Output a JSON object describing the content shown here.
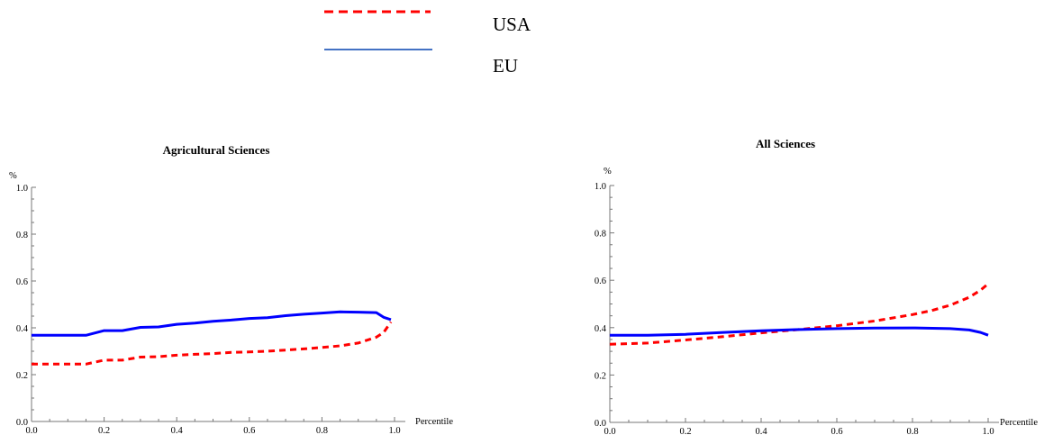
{
  "legend": {
    "entries": [
      {
        "name": "USA",
        "color": "#ff0000",
        "style": "dashed"
      },
      {
        "name": "EU",
        "color": "#4472c4",
        "style": "solid"
      }
    ]
  },
  "colors": {
    "usa": "#ff0000",
    "eu": "#0000ff"
  },
  "chart_data": [
    {
      "type": "line",
      "title": "Agricultural Sciences",
      "xlabel": "Percentile",
      "ylabel": "%",
      "xlim": [
        0,
        1
      ],
      "ylim": [
        0,
        1
      ],
      "xticks": [
        "0.0",
        "0.2",
        "0.4",
        "0.6",
        "0.8",
        "1.0"
      ],
      "yticks": [
        "0.0",
        "0.2",
        "0.4",
        "0.6",
        "0.8",
        "1.0"
      ],
      "grid": false,
      "series": [
        {
          "name": "USA",
          "x": [
            0.0,
            0.05,
            0.1,
            0.15,
            0.2,
            0.25,
            0.3,
            0.35,
            0.4,
            0.45,
            0.5,
            0.55,
            0.6,
            0.65,
            0.7,
            0.75,
            0.8,
            0.85,
            0.9,
            0.95,
            0.97,
            0.99
          ],
          "y": [
            0.245,
            0.245,
            0.245,
            0.245,
            0.262,
            0.262,
            0.275,
            0.277,
            0.283,
            0.287,
            0.29,
            0.295,
            0.297,
            0.3,
            0.305,
            0.31,
            0.316,
            0.323,
            0.335,
            0.36,
            0.38,
            0.425
          ]
        },
        {
          "name": "EU",
          "x": [
            0.0,
            0.05,
            0.1,
            0.15,
            0.2,
            0.25,
            0.3,
            0.35,
            0.4,
            0.45,
            0.5,
            0.55,
            0.6,
            0.65,
            0.7,
            0.75,
            0.8,
            0.85,
            0.9,
            0.95,
            0.97,
            0.99
          ],
          "y": [
            0.368,
            0.368,
            0.368,
            0.368,
            0.388,
            0.388,
            0.402,
            0.404,
            0.415,
            0.42,
            0.428,
            0.433,
            0.44,
            0.443,
            0.452,
            0.458,
            0.463,
            0.468,
            0.467,
            0.465,
            0.445,
            0.435
          ]
        }
      ]
    },
    {
      "type": "line",
      "title": "All Sciences",
      "xlabel": "Percentile",
      "ylabel": "%",
      "xlim": [
        0,
        1
      ],
      "ylim": [
        0,
        1
      ],
      "xticks": [
        "0.0",
        "0.2",
        "0.4",
        "0.6",
        "0.8",
        "1.0"
      ],
      "yticks": [
        "0.0",
        "0.2",
        "0.4",
        "0.6",
        "0.8",
        "1.0"
      ],
      "grid": false,
      "series": [
        {
          "name": "USA",
          "x": [
            0.0,
            0.1,
            0.2,
            0.3,
            0.4,
            0.5,
            0.6,
            0.7,
            0.8,
            0.85,
            0.9,
            0.95,
            0.98,
            1.0
          ],
          "y": [
            0.33,
            0.335,
            0.348,
            0.362,
            0.378,
            0.392,
            0.408,
            0.428,
            0.455,
            0.472,
            0.495,
            0.528,
            0.558,
            0.585
          ]
        },
        {
          "name": "EU",
          "x": [
            0.0,
            0.1,
            0.2,
            0.3,
            0.4,
            0.5,
            0.6,
            0.7,
            0.8,
            0.9,
            0.95,
            0.98,
            1.0
          ],
          "y": [
            0.368,
            0.368,
            0.372,
            0.38,
            0.387,
            0.392,
            0.396,
            0.398,
            0.399,
            0.396,
            0.39,
            0.38,
            0.368
          ]
        }
      ]
    }
  ]
}
